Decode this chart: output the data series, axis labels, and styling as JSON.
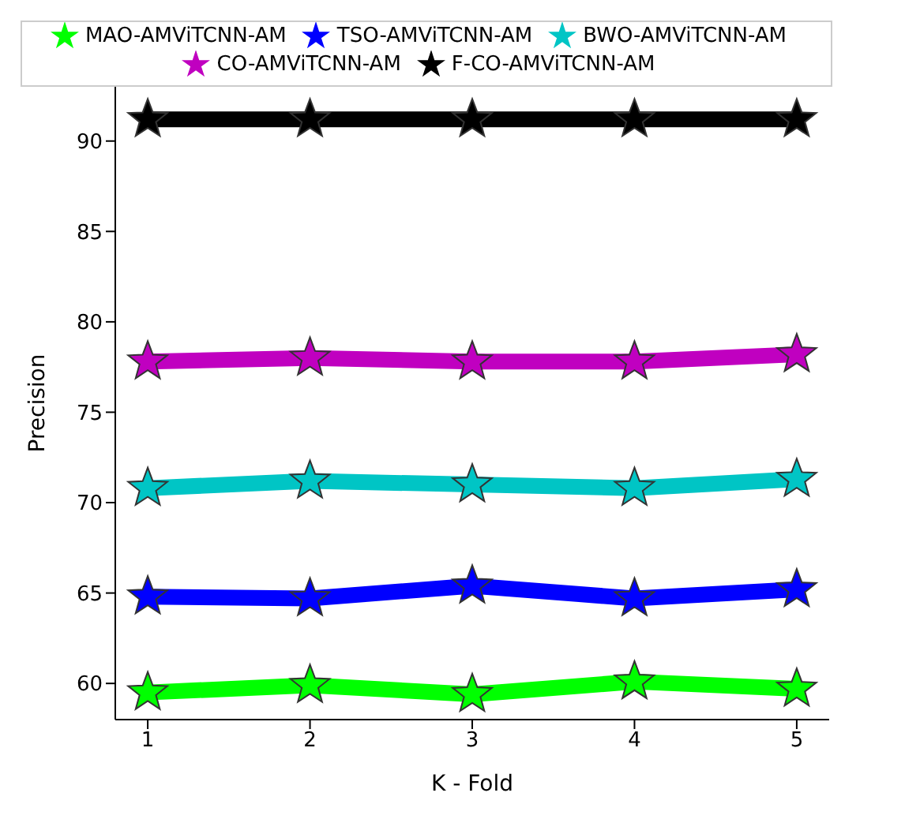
{
  "chart_data": {
    "type": "line",
    "xlabel": "K - Fold",
    "ylabel": "Precision",
    "x": [
      1,
      2,
      3,
      4,
      5
    ],
    "xlim": [
      0.8,
      5.2
    ],
    "xticks": [
      1,
      2,
      3,
      4,
      5
    ],
    "ylim": [
      58,
      93
    ],
    "yticks": [
      60,
      65,
      70,
      75,
      80,
      85,
      90
    ],
    "marker": "star",
    "line_style": "solid",
    "legend": "top",
    "grid": false,
    "series": [
      {
        "name": "MAO-AMViTCNN-AM",
        "color": "#00ff00",
        "values": [
          59.5,
          59.9,
          59.4,
          60.1,
          59.7
        ]
      },
      {
        "name": "TSO-AMViTCNN-AM",
        "color": "#0000ff",
        "values": [
          64.8,
          64.7,
          65.4,
          64.7,
          65.2
        ]
      },
      {
        "name": "BWO-AMViTCNN-AM",
        "color": "#00c5c5",
        "values": [
          70.8,
          71.2,
          71.0,
          70.8,
          71.3
        ]
      },
      {
        "name": "CO-AMViTCNN-AM",
        "color": "#c000c0",
        "values": [
          77.8,
          78.0,
          77.8,
          77.8,
          78.2
        ]
      },
      {
        "name": "F-CO-AMViTCNN-AM",
        "color": "#000000",
        "values": [
          91.2,
          91.2,
          91.2,
          91.2,
          91.2
        ]
      }
    ]
  }
}
